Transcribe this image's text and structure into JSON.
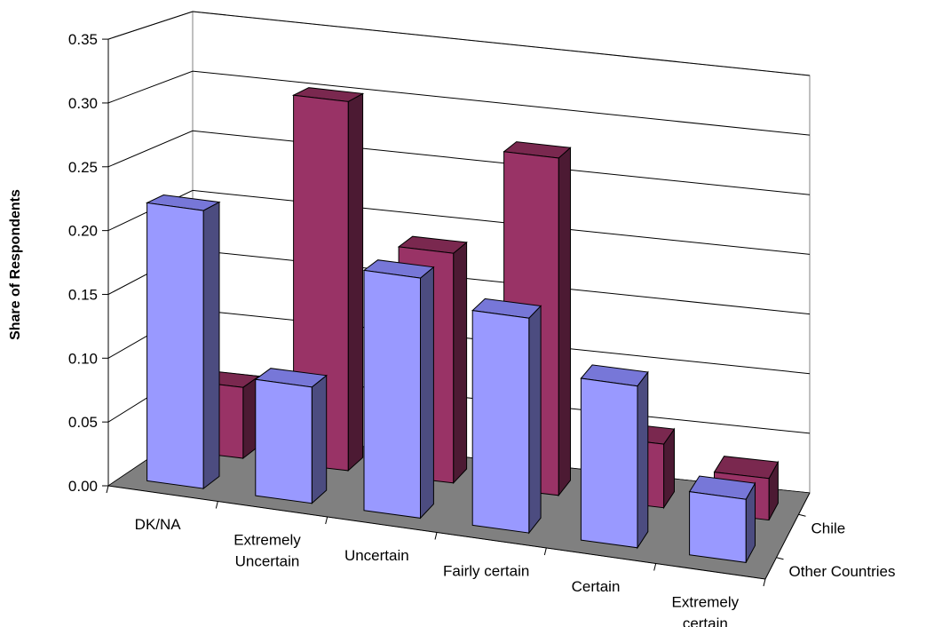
{
  "chart_data": {
    "type": "bar",
    "title": "",
    "xlabel": "",
    "ylabel": "Share of Respondents",
    "ylim": [
      0,
      0.35
    ],
    "yticks": [
      "0.00",
      "0.05",
      "0.10",
      "0.15",
      "0.20",
      "0.25",
      "0.30",
      "0.35"
    ],
    "categories": [
      [
        "DK/NA"
      ],
      [
        "Extremely",
        "Uncertain"
      ],
      [
        "Uncertain"
      ],
      [
        "Fairly certain"
      ],
      [
        "Certain"
      ],
      [
        "Extremely",
        "certain"
      ]
    ],
    "series": [
      {
        "name": "Other Countries",
        "values": [
          0.22,
          0.092,
          0.19,
          0.17,
          0.128,
          0.05
        ]
      },
      {
        "name": "Chile",
        "values": [
          0.058,
          0.302,
          0.188,
          0.276,
          0.052,
          0.034
        ]
      }
    ],
    "grid": true,
    "legend": "depth-axis-right",
    "colors": {
      "other_countries_front": "#9999ff",
      "other_countries_side": "#4c4c80",
      "other_countries_top": "#7777d8",
      "chile_front": "#993366",
      "chile_side": "#4c1a33",
      "chile_top": "#7a284f",
      "floor": "#808080",
      "grid": "#000000"
    }
  }
}
